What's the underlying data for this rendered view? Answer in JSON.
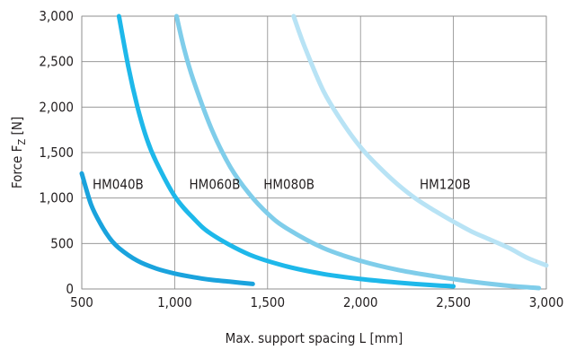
{
  "chart_data": {
    "type": "line",
    "title": "",
    "xlabel": "Max. support spacing L [mm]",
    "ylabel_main": "Force F",
    "ylabel_sub": "Z",
    "ylabel_unit": " [N]",
    "xlim": [
      500,
      3000
    ],
    "ylim": [
      0,
      3000
    ],
    "x_ticks": [
      500,
      1000,
      1500,
      2000,
      2500,
      3000
    ],
    "x_tick_labels": [
      "500",
      "1,000",
      "1,500",
      "2,000",
      "2,500",
      "3,000"
    ],
    "y_ticks": [
      0,
      500,
      1000,
      1500,
      2000,
      2500,
      3000
    ],
    "y_tick_labels": [
      "0",
      "500",
      "1,000",
      "1,500",
      "2,000",
      "2,500",
      "3,000"
    ],
    "grid": true,
    "legend": "inline labels",
    "series": [
      {
        "name": "HM040B",
        "color": "#1aa3dd",
        "label_at": [
          500,
          1150
        ],
        "x": [
          500,
          550,
          600,
          650,
          700,
          800,
          900,
          1000,
          1100,
          1200,
          1300,
          1420
        ],
        "y": [
          1270,
          930,
          720,
          560,
          450,
          310,
          225,
          170,
          130,
          100,
          80,
          55
        ]
      },
      {
        "name": "HM060B",
        "color": "#1eb8ea",
        "label_at": [
          1020,
          1150
        ],
        "x": [
          700,
          750,
          800,
          850,
          900,
          1000,
          1100,
          1200,
          1400,
          1600,
          1800,
          2000,
          2200,
          2400,
          2500
        ],
        "y": [
          3000,
          2450,
          2000,
          1650,
          1400,
          1020,
          780,
          600,
          380,
          250,
          165,
          110,
          70,
          40,
          30
        ]
      },
      {
        "name": "HM080B",
        "color": "#7fcdea",
        "label_at": [
          1420,
          1150
        ],
        "x": [
          1010,
          1050,
          1100,
          1200,
          1300,
          1400,
          1500,
          1600,
          1800,
          2000,
          2200,
          2400,
          2600,
          2800,
          2960
        ],
        "y": [
          3000,
          2650,
          2300,
          1750,
          1340,
          1050,
          830,
          670,
          450,
          310,
          210,
          140,
          80,
          35,
          10
        ]
      },
      {
        "name": "HM120B",
        "color": "#b8e3f5",
        "label_at": [
          2260,
          1150
        ],
        "x": [
          1640,
          1700,
          1800,
          1900,
          2000,
          2100,
          2200,
          2300,
          2400,
          2500,
          2600,
          2700,
          2800,
          2900,
          3000
        ],
        "y": [
          3000,
          2660,
          2180,
          1840,
          1560,
          1340,
          1150,
          990,
          860,
          740,
          630,
          540,
          450,
          340,
          260
        ]
      }
    ]
  }
}
